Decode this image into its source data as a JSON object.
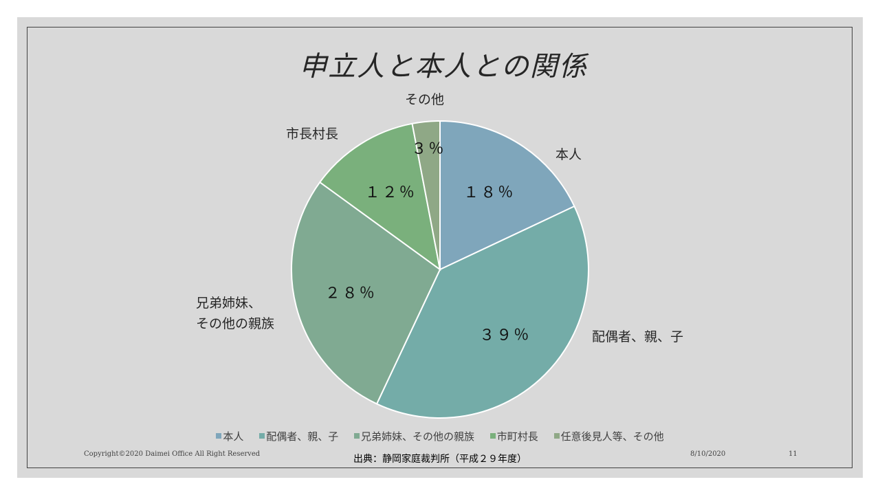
{
  "chart_data": {
    "type": "pie",
    "title": "申立人と本人との関係",
    "slices": [
      {
        "name": "本人",
        "label": "本人",
        "value": 18,
        "value_label": "１８％",
        "color": "#7fa6bb"
      },
      {
        "name": "配偶者、親、子",
        "label": "配偶者、親、子",
        "value": 39,
        "value_label": "３９％",
        "color": "#74aca8"
      },
      {
        "name": "兄弟姉妹、その他の親族",
        "label_lines": [
          "兄弟姉妹、",
          "その他の親族"
        ],
        "value": 28,
        "value_label": "２８％",
        "color": "#80aa92"
      },
      {
        "name": "市町村長",
        "label": "市長村長",
        "value": 12,
        "value_label": "１２％",
        "color": "#7ab07c"
      },
      {
        "name": "任意後見人等、その他",
        "label": "その他",
        "value": 3,
        "value_label": "３％",
        "color": "#8fa886"
      }
    ],
    "legend": [
      "本人",
      "配偶者、親、子",
      "兄弟姉妹、その他の親族",
      "市町村長",
      "任意後見人等、その他"
    ],
    "legend_position": "bottom"
  },
  "footer": {
    "copyright": "Copyright©2020 Daimei Office All Right Reserved",
    "source": "出典：静岡家庭裁判所（平成２９年度）",
    "date": "8/10/2020",
    "page": "11"
  }
}
